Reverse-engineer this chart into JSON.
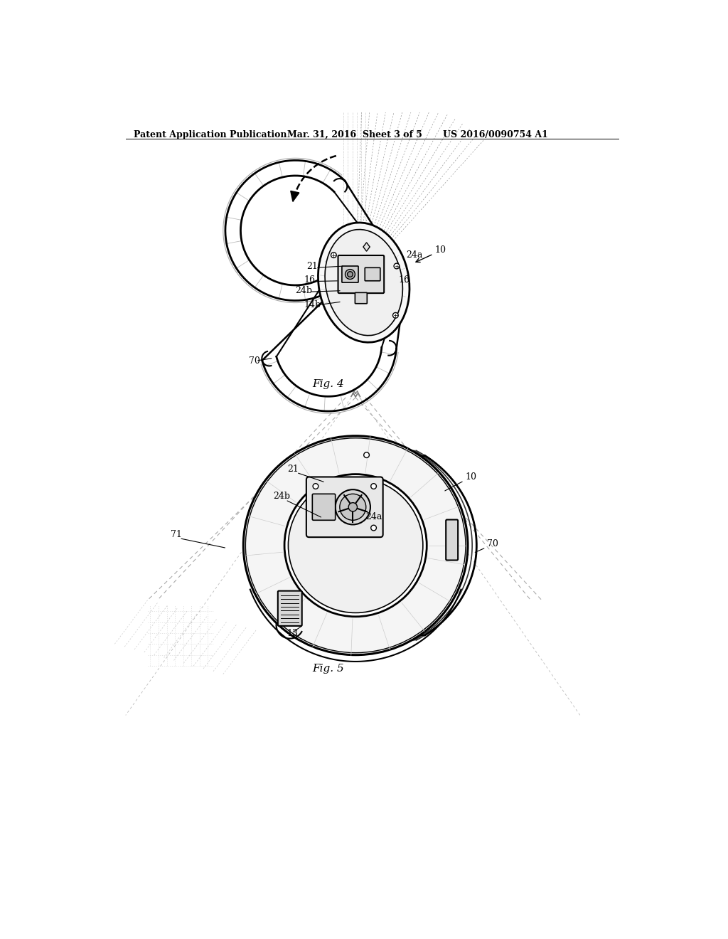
{
  "header_left": "Patent Application Publication",
  "header_mid": "Mar. 31, 2016  Sheet 3 of 5",
  "header_right": "US 2016/0090754 A1",
  "fig4_label": "Fig. 4",
  "fig5_label": "Fig. 5",
  "bg_color": "#ffffff",
  "line_color": "#000000",
  "gray1": "#888888",
  "gray2": "#aaaaaa",
  "gray3": "#cccccc",
  "gray4": "#dddddd",
  "gray5": "#eeeeee",
  "label_fontsize": 9,
  "header_fontsize": 9
}
